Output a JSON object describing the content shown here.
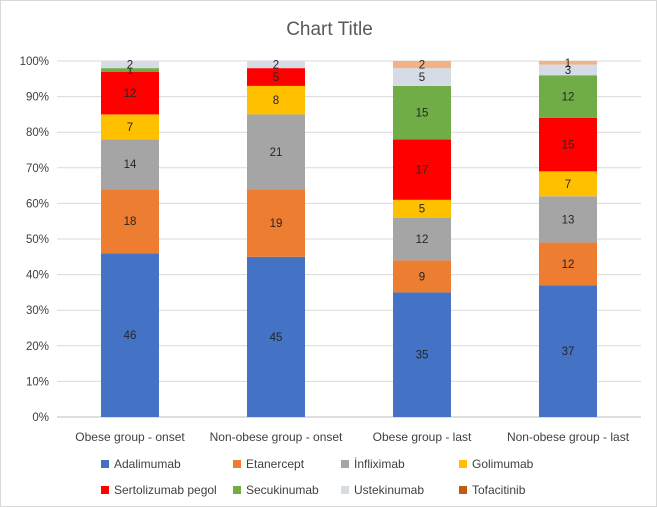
{
  "chart_data": {
    "type": "bar",
    "stacked": "percent",
    "title": "Chart Title",
    "xlabel": "",
    "ylabel": "",
    "ylim": [
      0,
      100
    ],
    "y_tick_labels": [
      "0%",
      "10%",
      "20%",
      "30%",
      "40%",
      "50%",
      "60%",
      "70%",
      "80%",
      "90%",
      "100%"
    ],
    "grid": true,
    "legend_position": "bottom",
    "categories": [
      "Obese group - onset",
      "Non-obese group - onset",
      "Obese group - last",
      "Non-obese group - last"
    ],
    "series": [
      {
        "name": "Adalimumab",
        "color": "#4472C4",
        "values": [
          46,
          45,
          35,
          37
        ]
      },
      {
        "name": "Etanercept",
        "color": "#ED7D31",
        "values": [
          18,
          19,
          9,
          12
        ]
      },
      {
        "name": "İnfliximab",
        "color": "#A5A5A5",
        "values": [
          14,
          21,
          12,
          13
        ]
      },
      {
        "name": "Golimumab",
        "color": "#FFC000",
        "values": [
          7,
          8,
          5,
          7
        ]
      },
      {
        "name": "Sertolizumab pegol",
        "color": "#FF0000",
        "values": [
          12,
          5,
          17,
          15
        ]
      },
      {
        "name": "Secukinumab",
        "color": "#70AD47",
        "values": [
          1,
          0,
          15,
          12
        ]
      },
      {
        "name": "Ustekinumab",
        "color": "#D6DCE5",
        "values": [
          2,
          2,
          5,
          3
        ]
      },
      {
        "name": "Tofacitinib",
        "color": "#F4B183",
        "legend_color": "#C55A11",
        "values": [
          0,
          0,
          2,
          1
        ]
      }
    ]
  }
}
